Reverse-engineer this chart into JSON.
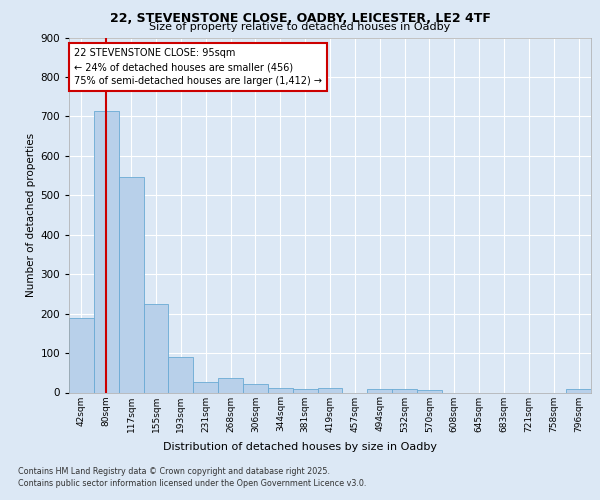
{
  "title_line1": "22, STEVENSTONE CLOSE, OADBY, LEICESTER, LE2 4TF",
  "title_line2": "Size of property relative to detached houses in Oadby",
  "xlabel": "Distribution of detached houses by size in Oadby",
  "ylabel": "Number of detached properties",
  "footer_line1": "Contains HM Land Registry data © Crown copyright and database right 2025.",
  "footer_line2": "Contains public sector information licensed under the Open Government Licence v3.0.",
  "bar_labels": [
    "42sqm",
    "80sqm",
    "117sqm",
    "155sqm",
    "193sqm",
    "231sqm",
    "268sqm",
    "306sqm",
    "344sqm",
    "381sqm",
    "419sqm",
    "457sqm",
    "494sqm",
    "532sqm",
    "570sqm",
    "608sqm",
    "645sqm",
    "683sqm",
    "721sqm",
    "758sqm",
    "796sqm"
  ],
  "bar_values": [
    190,
    713,
    547,
    225,
    90,
    27,
    36,
    22,
    11,
    10,
    11,
    0,
    8,
    10,
    6,
    0,
    0,
    0,
    0,
    0,
    9
  ],
  "bar_color": "#b8d0ea",
  "bar_edge_color": "#6aaad4",
  "background_color": "#dce8f5",
  "plot_bg_color": "#dce8f5",
  "grid_color": "#ffffff",
  "vline_x_index": 1,
  "vline_color": "#cc0000",
  "annotation_text": "22 STEVENSTONE CLOSE: 95sqm\n← 24% of detached houses are smaller (456)\n75% of semi-detached houses are larger (1,412) →",
  "annotation_box_color": "#ffffff",
  "annotation_box_edge": "#cc0000",
  "ylim": [
    0,
    900
  ],
  "yticks": [
    0,
    100,
    200,
    300,
    400,
    500,
    600,
    700,
    800,
    900
  ]
}
